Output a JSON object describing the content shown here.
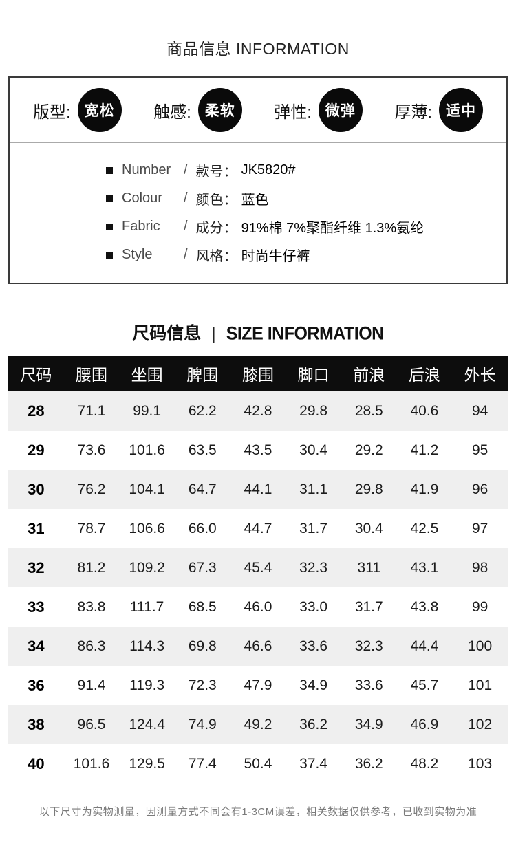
{
  "header": {
    "title": "商品信息 INFORMATION"
  },
  "product_box": {
    "attributes": [
      {
        "label": "版型:",
        "value": "宽松"
      },
      {
        "label": "触感:",
        "value": "柔软"
      },
      {
        "label": "弹性:",
        "value": "微弹"
      },
      {
        "label": "厚薄:",
        "value": "适中"
      }
    ],
    "details": [
      {
        "en": "Number",
        "slash": "/",
        "cn": "款号：",
        "value": "JK5820#"
      },
      {
        "en": "Colour",
        "slash": "/",
        "cn": "颜色：",
        "value": "蓝色"
      },
      {
        "en": "Fabric",
        "slash": "/",
        "cn": "成分：",
        "value": "91%棉 7%聚酯纤维 1.3%氨纶"
      },
      {
        "en": "Style",
        "slash": "/",
        "cn": "风格：",
        "value": "时尚牛仔裤"
      }
    ]
  },
  "size_section": {
    "title_cn": "尺码信息",
    "separator": "|",
    "title_en": "SIZE INFORMATION"
  },
  "chart_data": {
    "type": "table",
    "columns": [
      {
        "label": "尺码"
      },
      {
        "label": "腰围"
      },
      {
        "label": "坐围"
      },
      {
        "label": "脾围"
      },
      {
        "label": "膝围"
      },
      {
        "label": "脚口"
      },
      {
        "label": "前浪"
      },
      {
        "label": "后浪"
      },
      {
        "label": "外长"
      }
    ],
    "rows": [
      [
        "28",
        "71.1",
        "99.1",
        "62.2",
        "42.8",
        "29.8",
        "28.5",
        "40.6",
        "94"
      ],
      [
        "29",
        "73.6",
        "101.6",
        "63.5",
        "43.5",
        "30.4",
        "29.2",
        "41.2",
        "95"
      ],
      [
        "30",
        "76.2",
        "104.1",
        "64.7",
        "44.1",
        "31.1",
        "29.8",
        "41.9",
        "96"
      ],
      [
        "31",
        "78.7",
        "106.6",
        "66.0",
        "44.7",
        "31.7",
        "30.4",
        "42.5",
        "97"
      ],
      [
        "32",
        "81.2",
        "109.2",
        "67.3",
        "45.4",
        "32.3",
        "311",
        "43.1",
        "98"
      ],
      [
        "33",
        "83.8",
        "111.7",
        "68.5",
        "46.0",
        "33.0",
        "31.7",
        "43.8",
        "99"
      ],
      [
        "34",
        "86.3",
        "114.3",
        "69.8",
        "46.6",
        "33.6",
        "32.3",
        "44.4",
        "100"
      ],
      [
        "36",
        "91.4",
        "119.3",
        "72.3",
        "47.9",
        "34.9",
        "33.6",
        "45.7",
        "101"
      ],
      [
        "38",
        "96.5",
        "124.4",
        "74.9",
        "49.2",
        "36.2",
        "34.9",
        "46.9",
        "102"
      ],
      [
        "40",
        "101.6",
        "129.5",
        "77.4",
        "50.4",
        "37.4",
        "36.2",
        "48.2",
        "103"
      ]
    ]
  },
  "footer": {
    "note": "以下尺寸为实物测量，因测量方式不同会有1-3CM误差，相关数据仅供参考，已收到实物为准"
  },
  "colors": {
    "table_header_bg": "#0d0d0d",
    "row_alt_bg": "#efefef",
    "circle_bg": "#0a0a0a",
    "box_border": "#3a3a3a",
    "footer_text": "#7a7a7a"
  }
}
